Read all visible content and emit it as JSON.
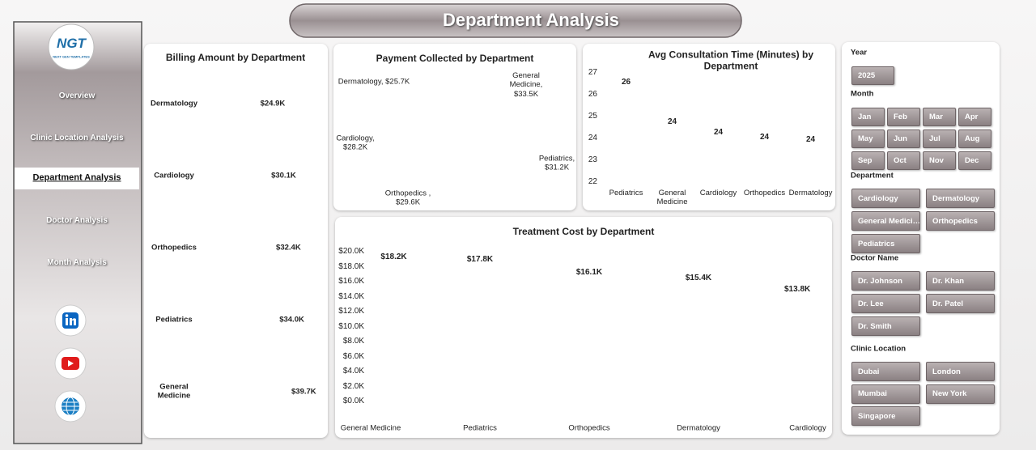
{
  "header": {
    "title": "Department Analysis"
  },
  "sidebar": {
    "logo": "NGT",
    "tagline": "NEXT GEN TEMPLATES",
    "nav": [
      "Overview",
      "Clinic Location Analysis",
      "Department Analysis",
      "Doctor Analysis",
      "Month Analysis"
    ],
    "active": 2
  },
  "chart_data": [
    {
      "type": "bar",
      "orientation": "horizontal",
      "title": "Billing Amount by Department",
      "categories": [
        "Dermatology",
        "Cardiology",
        "Orthopedics",
        "Pediatrics",
        "General Medicine"
      ],
      "values": [
        24900,
        30100,
        32400,
        34000,
        39700
      ],
      "value_labels": [
        "$24.9K",
        "$30.1K",
        "$32.4K",
        "$34.0K",
        "$39.7K"
      ],
      "color": "#5a5153"
    },
    {
      "type": "pie",
      "title": "Payment Collected by Department",
      "labels": [
        "General Medicine, $33.5K",
        "Pediatrics, $31.2K",
        "Orthopedics , $29.6K",
        "Cardiology, $28.2K",
        "Dermatology, $25.7K"
      ],
      "values": [
        33500,
        31200,
        29600,
        28200,
        25700
      ],
      "colors": [
        "#d9d5d5",
        "#3f3839",
        "#a9a4a5",
        "#cdc5c6",
        "#8b7f81"
      ]
    },
    {
      "type": "bar",
      "orientation": "vertical",
      "title": "Avg Consultation Time (Minutes) by Department",
      "categories": [
        "Pediatrics",
        "General Medicine",
        "Cardiology",
        "Orthopedics",
        "Dermatology"
      ],
      "values": [
        26.1,
        24.3,
        23.8,
        23.6,
        23.5
      ],
      "value_labels": [
        "26",
        "24",
        "24",
        "24",
        "24"
      ],
      "ylim": [
        22,
        27
      ],
      "yticks": [
        22,
        23,
        24,
        25,
        26,
        27
      ],
      "grid": false,
      "color": "#6b6062"
    },
    {
      "type": "line",
      "title": "Treatment Cost by Department",
      "categories": [
        "General Medicine",
        "Pediatrics",
        "Orthopedics",
        "Dermatology",
        "Cardiology"
      ],
      "values": [
        18200,
        17800,
        16100,
        15400,
        13800
      ],
      "value_labels": [
        "$18.2K",
        "$17.8K",
        "$16.1K",
        "$15.4K",
        "$13.8K"
      ],
      "ylim": [
        0,
        20000
      ],
      "yticks": [
        {
          "value": 0,
          "label": "$0.0K"
        },
        {
          "value": 2000,
          "label": "$2.0K"
        },
        {
          "value": 4000,
          "label": "$4.0K"
        },
        {
          "value": 6000,
          "label": "$6.0K"
        },
        {
          "value": 8000,
          "label": "$8.0K"
        },
        {
          "value": 10000,
          "label": "$10.0K"
        },
        {
          "value": 12000,
          "label": "$12.0K"
        },
        {
          "value": 14000,
          "label": "$14.0K"
        },
        {
          "value": 16000,
          "label": "$16.0K"
        },
        {
          "value": 18000,
          "label": "$18.0K"
        },
        {
          "value": 20000,
          "label": "$20.0K"
        }
      ],
      "grid": true,
      "color": "#8c8083"
    }
  ],
  "slicers": [
    {
      "title": "Year",
      "items": [
        "2025"
      ]
    },
    {
      "title": "Month",
      "items": [
        "Jan",
        "Feb",
        "Mar",
        "Apr",
        "May",
        "Jun",
        "Jul",
        "Aug",
        "Sep",
        "Oct",
        "Nov",
        "Dec"
      ]
    },
    {
      "title": "Department",
      "items": [
        "Cardiology",
        "Dermatology",
        "General Medici…",
        "Orthopedics",
        "Pediatrics"
      ]
    },
    {
      "title": "Doctor Name",
      "items": [
        "Dr. Johnson",
        "Dr. Khan",
        "Dr. Lee",
        "Dr. Patel",
        "Dr. Smith"
      ]
    },
    {
      "title": "Clinic Location",
      "items": [
        "Dubai",
        "London",
        "Mumbai",
        "New York",
        "Singapore"
      ]
    }
  ]
}
